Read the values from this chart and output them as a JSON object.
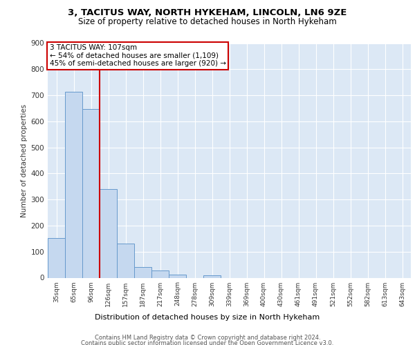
{
  "title1": "3, TACITUS WAY, NORTH HYKEHAM, LINCOLN, LN6 9ZE",
  "title2": "Size of property relative to detached houses in North Hykeham",
  "xlabel": "Distribution of detached houses by size in North Hykeham",
  "ylabel": "Number of detached properties",
  "annotation_line1": "3 TACITUS WAY: 107sqm",
  "annotation_line2": "← 54% of detached houses are smaller (1,109)",
  "annotation_line3": "45% of semi-detached houses are larger (920) →",
  "footer1": "Contains HM Land Registry data © Crown copyright and database right 2024.",
  "footer2": "Contains public sector information licensed under the Open Government Licence v3.0.",
  "categories": [
    "35sqm",
    "65sqm",
    "96sqm",
    "126sqm",
    "157sqm",
    "187sqm",
    "217sqm",
    "248sqm",
    "278sqm",
    "309sqm",
    "339sqm",
    "369sqm",
    "400sqm",
    "430sqm",
    "461sqm",
    "491sqm",
    "521sqm",
    "552sqm",
    "582sqm",
    "613sqm",
    "643sqm"
  ],
  "values": [
    152,
    714,
    648,
    340,
    130,
    40,
    28,
    11,
    0,
    8,
    0,
    0,
    0,
    0,
    0,
    0,
    0,
    0,
    0,
    0,
    0
  ],
  "bar_color": "#c5d8ef",
  "bar_edge_color": "#6699cc",
  "red_line_x": 2.5,
  "red_line_color": "#cc0000",
  "annotation_box_color": "#cc0000",
  "background_color": "#dce8f5",
  "ylim": [
    0,
    900
  ],
  "yticks": [
    0,
    100,
    200,
    300,
    400,
    500,
    600,
    700,
    800,
    900
  ]
}
